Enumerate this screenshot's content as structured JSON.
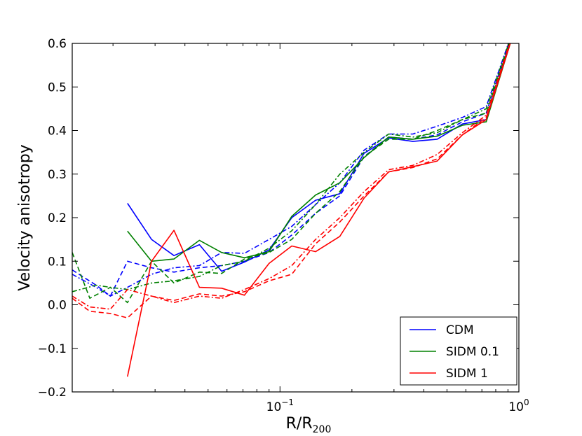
{
  "chart_data": {
    "type": "line",
    "xlabel": "R/R",
    "xlabel_sub": "200",
    "ylabel": "Velocity anisotropy",
    "xscale": "log",
    "xlim": [
      0.0135,
      1.0
    ],
    "ylim": [
      -0.2,
      0.6
    ],
    "grid": false,
    "legend_position": "lower-right",
    "x_ticks": [
      {
        "value": 0.1,
        "base": "10",
        "exp": "−1"
      },
      {
        "value": 1.0,
        "base": "10",
        "exp": "0"
      }
    ],
    "y_ticks": [
      {
        "value": -0.2,
        "label": "−0.2"
      },
      {
        "value": -0.1,
        "label": "−0.1"
      },
      {
        "value": 0.0,
        "label": "0.0"
      },
      {
        "value": 0.1,
        "label": "0.1"
      },
      {
        "value": 0.2,
        "label": "0.2"
      },
      {
        "value": 0.3,
        "label": "0.3"
      },
      {
        "value": 0.4,
        "label": "0.4"
      },
      {
        "value": 0.5,
        "label": "0.5"
      },
      {
        "value": 0.6,
        "label": "0.6"
      }
    ],
    "legend": [
      {
        "name": "CDM",
        "color": "#0000ff"
      },
      {
        "name": "SIDM 0.1",
        "color": "#008000"
      },
      {
        "name": "SIDM 1",
        "color": "#ff0000"
      }
    ],
    "series": [
      {
        "model": "CDM",
        "style": "solid",
        "color": "#0000ff",
        "x": [
          0.023,
          0.029,
          0.036,
          0.046,
          0.057,
          0.071,
          0.09,
          0.112,
          0.141,
          0.178,
          0.225,
          0.285,
          0.36,
          0.455,
          0.58,
          0.73,
          0.92
        ],
        "y": [
          0.233,
          0.15,
          0.113,
          0.138,
          0.077,
          0.098,
          0.126,
          0.2,
          0.24,
          0.255,
          0.348,
          0.383,
          0.375,
          0.38,
          0.415,
          0.425,
          0.605
        ]
      },
      {
        "model": "CDM",
        "style": "dashed",
        "color": "#0000ff",
        "x": [
          0.0135,
          0.017,
          0.0195,
          0.023,
          0.029,
          0.036,
          0.046,
          0.057,
          0.071,
          0.09,
          0.112,
          0.141,
          0.178,
          0.225,
          0.285,
          0.36,
          0.455,
          0.58,
          0.73,
          0.92
        ],
        "y": [
          0.08,
          0.045,
          0.02,
          0.1,
          0.085,
          0.075,
          0.085,
          0.09,
          0.1,
          0.12,
          0.16,
          0.21,
          0.25,
          0.34,
          0.385,
          0.38,
          0.39,
          0.42,
          0.44,
          0.61
        ]
      },
      {
        "model": "CDM",
        "style": "dashdot",
        "color": "#0000ff",
        "x": [
          0.0135,
          0.017,
          0.0195,
          0.023,
          0.029,
          0.036,
          0.046,
          0.057,
          0.071,
          0.09,
          0.112,
          0.141,
          0.178,
          0.225,
          0.285,
          0.36,
          0.455,
          0.58,
          0.73,
          0.92
        ],
        "y": [
          0.07,
          0.04,
          0.02,
          0.04,
          0.07,
          0.085,
          0.09,
          0.12,
          0.118,
          0.15,
          0.18,
          0.23,
          0.28,
          0.355,
          0.392,
          0.392,
          0.41,
          0.43,
          0.455,
          0.612
        ]
      },
      {
        "model": "SIDM 0.1",
        "style": "solid",
        "color": "#008000",
        "x": [
          0.023,
          0.029,
          0.036,
          0.046,
          0.057,
          0.071,
          0.09,
          0.112,
          0.141,
          0.178,
          0.225,
          0.285,
          0.36,
          0.455,
          0.58,
          0.73,
          0.92
        ],
        "y": [
          0.169,
          0.1,
          0.105,
          0.148,
          0.12,
          0.108,
          0.122,
          0.203,
          0.252,
          0.28,
          0.338,
          0.385,
          0.38,
          0.387,
          0.412,
          0.42,
          0.6
        ]
      },
      {
        "model": "SIDM 0.1",
        "style": "dashed",
        "color": "#008000",
        "x": [
          0.0135,
          0.016,
          0.0195,
          0.023,
          0.029,
          0.036,
          0.046,
          0.057,
          0.071,
          0.09,
          0.112,
          0.141,
          0.178,
          0.225,
          0.285,
          0.36,
          0.455,
          0.58,
          0.73,
          0.92
        ],
        "y": [
          0.12,
          0.015,
          0.04,
          0.005,
          0.1,
          0.05,
          0.075,
          0.072,
          0.105,
          0.12,
          0.15,
          0.21,
          0.26,
          0.34,
          0.38,
          0.38,
          0.4,
          0.425,
          0.44,
          0.605
        ]
      },
      {
        "model": "SIDM 0.1",
        "style": "dashdot",
        "color": "#008000",
        "x": [
          0.0135,
          0.017,
          0.0195,
          0.023,
          0.029,
          0.036,
          0.046,
          0.057,
          0.071,
          0.09,
          0.112,
          0.141,
          0.178,
          0.225,
          0.285,
          0.36,
          0.455,
          0.58,
          0.73,
          0.92
        ],
        "y": [
          0.03,
          0.045,
          0.04,
          0.035,
          0.05,
          0.055,
          0.065,
          0.09,
          0.1,
          0.13,
          0.17,
          0.23,
          0.3,
          0.35,
          0.392,
          0.385,
          0.395,
          0.425,
          0.45,
          0.61
        ]
      },
      {
        "model": "SIDM 1",
        "style": "solid",
        "color": "#ff0000",
        "x": [
          0.023,
          0.029,
          0.036,
          0.046,
          0.057,
          0.071,
          0.09,
          0.112,
          0.141,
          0.178,
          0.225,
          0.285,
          0.36,
          0.455,
          0.58,
          0.73,
          0.92
        ],
        "y": [
          -0.165,
          0.1,
          0.171,
          0.04,
          0.038,
          0.022,
          0.095,
          0.135,
          0.122,
          0.157,
          0.245,
          0.305,
          0.317,
          0.33,
          0.39,
          0.425,
          0.6
        ]
      },
      {
        "model": "SIDM 1",
        "style": "dashed",
        "color": "#ff0000",
        "x": [
          0.0135,
          0.016,
          0.0195,
          0.023,
          0.029,
          0.036,
          0.046,
          0.057,
          0.071,
          0.09,
          0.112,
          0.141,
          0.178,
          0.225,
          0.285,
          0.36,
          0.455,
          0.58,
          0.73,
          0.92
        ],
        "y": [
          0.015,
          -0.015,
          -0.02,
          -0.03,
          0.02,
          0.01,
          0.025,
          0.02,
          0.03,
          0.055,
          0.07,
          0.14,
          0.19,
          0.25,
          0.305,
          0.315,
          0.335,
          0.39,
          0.43,
          0.6
        ]
      },
      {
        "model": "SIDM 1",
        "style": "dashdot",
        "color": "#ff0000",
        "x": [
          0.0135,
          0.016,
          0.0195,
          0.023,
          0.029,
          0.036,
          0.046,
          0.057,
          0.071,
          0.09,
          0.112,
          0.141,
          0.178,
          0.225,
          0.285,
          0.36,
          0.455,
          0.58,
          0.73,
          0.92
        ],
        "y": [
          0.02,
          -0.005,
          -0.01,
          0.035,
          0.02,
          0.005,
          0.02,
          0.015,
          0.035,
          0.06,
          0.09,
          0.15,
          0.2,
          0.26,
          0.31,
          0.32,
          0.345,
          0.395,
          0.435,
          0.605
        ]
      }
    ]
  }
}
